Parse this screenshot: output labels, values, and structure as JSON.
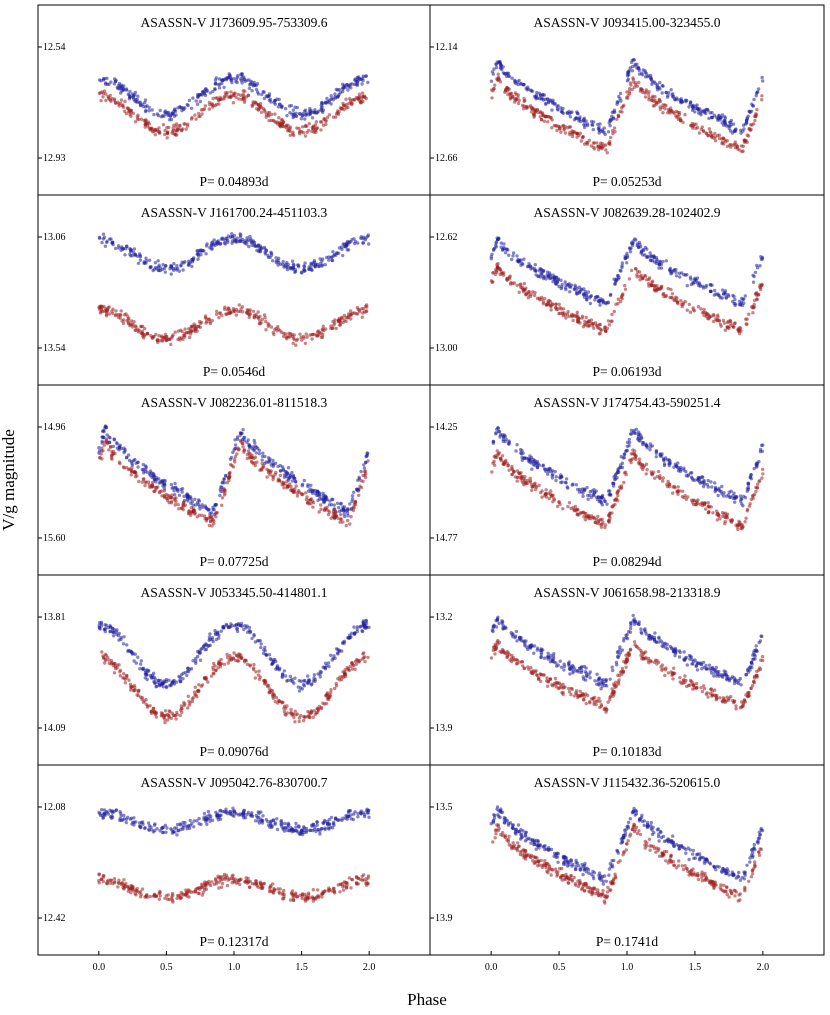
{
  "figure": {
    "ylabel": "V/g magnitude",
    "xlabel": "Phase",
    "x_ticks": [
      "0.0",
      "0.5",
      "1.0",
      "1.5",
      "2.0"
    ]
  },
  "colors": {
    "blue": "#1f1fa0",
    "red": "#a01f1f"
  },
  "chart_data": [
    {
      "type": "scatter",
      "title": "ASASSN-V J173609.95-753309.6",
      "period_label": "P= 0.04893d",
      "y_top": "12.54",
      "y_bottom": "12.93",
      "xlim": [
        -0.45,
        2.45
      ],
      "blue_level": 0.3,
      "red_level": 0.45,
      "amplitude": 0.3,
      "shape": "sine"
    },
    {
      "type": "scatter",
      "title": "ASASSN-V J093415.00-323455.0",
      "period_label": "P= 0.05253d",
      "y_top": "12.14",
      "y_bottom": "12.66",
      "xlim": [
        -0.45,
        2.45
      ],
      "blue_level": 0.15,
      "red_level": 0.3,
      "amplitude": 0.6,
      "shape": "sawtooth"
    },
    {
      "type": "scatter",
      "title": "ASASSN-V J161700.24-451103.3",
      "period_label": "P= 0.0546d",
      "y_top": "13.06",
      "y_bottom": "13.54",
      "xlim": [
        -0.45,
        2.45
      ],
      "blue_level": 0.05,
      "red_level": 0.65,
      "amplitude": 0.25,
      "shape": "sine"
    },
    {
      "type": "scatter",
      "title": "ASASSN-V J082639.28-102402.9",
      "period_label": "P= 0.06193d",
      "y_top": "12.62",
      "y_bottom": "13.00",
      "xlim": [
        -0.45,
        2.45
      ],
      "blue_level": 0.05,
      "red_level": 0.28,
      "amplitude": 0.55,
      "shape": "sawtooth"
    },
    {
      "type": "scatter",
      "title": "ASASSN-V J082236.01-811518.3",
      "period_label": "P= 0.07725d",
      "y_top": "14.96",
      "y_bottom": "15.60",
      "xlim": [
        -0.45,
        2.45
      ],
      "blue_level": 0.05,
      "red_level": 0.15,
      "amplitude": 0.7,
      "shape": "sawtooth"
    },
    {
      "type": "scatter",
      "title": "ASASSN-V J174754.43-590251.4",
      "period_label": "P= 0.08294d",
      "y_top": "14.25",
      "y_bottom": "14.77",
      "xlim": [
        -0.45,
        2.45
      ],
      "blue_level": 0.05,
      "red_level": 0.25,
      "amplitude": 0.62,
      "shape": "sawtooth"
    },
    {
      "type": "scatter",
      "title": "ASASSN-V J053345.50-414801.1",
      "period_label": "P= 0.09076d",
      "y_top": "13.81",
      "y_bottom": "14.09",
      "xlim": [
        -0.45,
        2.45
      ],
      "blue_level": 0.1,
      "red_level": 0.38,
      "amplitude": 0.5,
      "shape": "sine"
    },
    {
      "type": "scatter",
      "title": "ASASSN-V J061658.98-213318.9",
      "period_label": "P= 0.10183d",
      "y_top": "13.2",
      "y_bottom": "13.9",
      "xlim": [
        -0.45,
        2.45
      ],
      "blue_level": 0.05,
      "red_level": 0.25,
      "amplitude": 0.55,
      "shape": "sawtooth"
    },
    {
      "type": "scatter",
      "title": "ASASSN-V J095042.76-830700.7",
      "period_label": "P= 0.12317d",
      "y_top": "12.08",
      "y_bottom": "12.42",
      "xlim": [
        -0.45,
        2.45
      ],
      "blue_level": 0.08,
      "red_level": 0.65,
      "amplitude": 0.15,
      "shape": "sine"
    },
    {
      "type": "scatter",
      "title": "ASASSN-V J115432.36-520615.0",
      "period_label": "P= 0.1741d",
      "y_top": "13.5",
      "y_bottom": "13.9",
      "xlim": [
        -0.45,
        2.45
      ],
      "blue_level": 0.05,
      "red_level": 0.2,
      "amplitude": 0.6,
      "shape": "sawtooth"
    }
  ]
}
